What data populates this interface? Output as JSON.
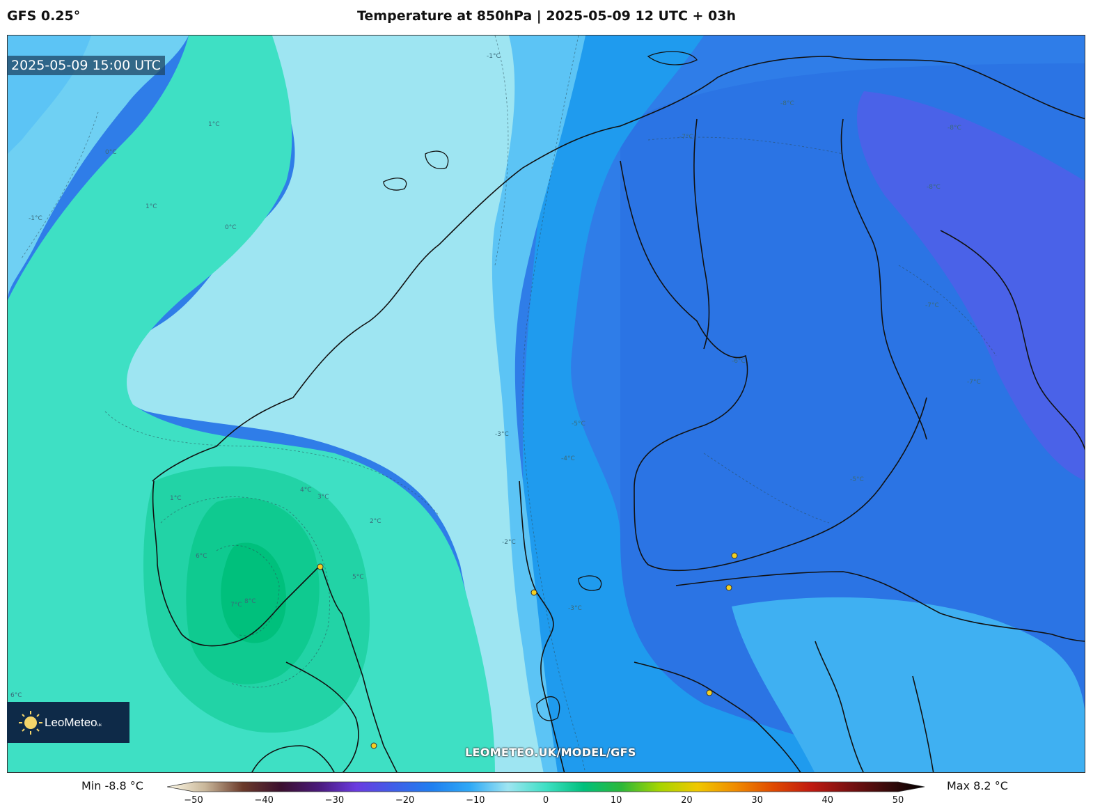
{
  "header": {
    "model": "GFS 0.25°",
    "title": "Temperature at 850hPa | 2025-05-09 12 UTC + 03h"
  },
  "map": {
    "valid_time": "2025-05-09 15:00 UTC",
    "watermark": "LEOMETEO.UK/MODEL/GFS",
    "logo": {
      "name": "LeoMeteo",
      "suffix": "uk"
    },
    "contour_labels": [
      "-1°C",
      "1°C",
      "0°C",
      "-1°C",
      "1°C",
      "0°C",
      "-7°C",
      "-8°C",
      "-8°C",
      "-6°C",
      "-5°C",
      "-4°C",
      "-3°C",
      "-2°C",
      "-8°C",
      "-7°C",
      "1°C",
      "4°C",
      "3°C",
      "5°C",
      "6°C",
      "7°C",
      "8°C",
      "2°C",
      "-5°C",
      "-3°C",
      "-7°C",
      "6°C"
    ],
    "colors": {
      "teal_warm": "#00c98a",
      "teal": "#3ee0c4",
      "cyan_light": "#9ee5f2",
      "sky": "#5cc4f5",
      "blue": "#1f9bee",
      "blue_deep": "#2f7de8",
      "violet": "#4a62e8",
      "city_dot": "#f2d023"
    }
  },
  "legend": {
    "min_label": "Min -8.8 °C",
    "max_label": "Max 8.2 °C",
    "ticks": [
      "−50",
      "−40",
      "−30",
      "−20",
      "−10",
      "0",
      "10",
      "20",
      "30",
      "40",
      "50"
    ],
    "tick_values": [
      -50,
      -40,
      -30,
      -20,
      -10,
      0,
      10,
      20,
      30,
      40,
      50
    ]
  }
}
